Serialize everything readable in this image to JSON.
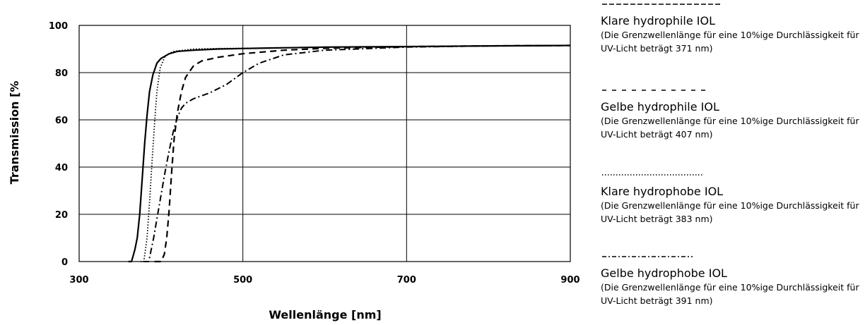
{
  "chart_data": {
    "type": "line",
    "title": "",
    "xlabel": "Wellenlänge [nm]",
    "ylabel": "Transmission [%",
    "xlim": [
      300,
      900
    ],
    "ylim": [
      0,
      100
    ],
    "x_ticks": [
      "300",
      "500",
      "700",
      "900"
    ],
    "y_ticks": [
      "0",
      "20",
      "40",
      "60",
      "80",
      "100"
    ],
    "grid": true,
    "legend_position": "right",
    "series": [
      {
        "name": "Klare hydrophile IOL",
        "note": "(Die Grenzwellenlänge für eine 10%ige Durchlässigkeit für UV-Licht beträgt 371 nm)",
        "line_style": "solid",
        "points": [
          [
            360,
            0
          ],
          [
            364,
            0
          ],
          [
            368,
            5
          ],
          [
            371,
            10
          ],
          [
            374,
            20
          ],
          [
            377,
            35
          ],
          [
            380,
            50
          ],
          [
            383,
            62
          ],
          [
            386,
            72
          ],
          [
            390,
            79
          ],
          [
            395,
            84
          ],
          [
            400,
            86
          ],
          [
            410,
            88
          ],
          [
            420,
            89
          ],
          [
            440,
            89.5
          ],
          [
            470,
            90
          ],
          [
            500,
            90.2
          ],
          [
            550,
            90.5
          ],
          [
            600,
            90.8
          ],
          [
            700,
            91
          ],
          [
            800,
            91.3
          ],
          [
            900,
            91.5
          ]
        ]
      },
      {
        "name": "Gelbe hydrophile IOL",
        "note": "(Die Grenzwellenlänge für eine 10%ige Durchlässigkeit für UV-Licht beträgt 407 nm)",
        "line_style": "dashed",
        "points": [
          [
            392,
            0
          ],
          [
            400,
            0
          ],
          [
            404,
            3
          ],
          [
            407,
            10
          ],
          [
            410,
            22
          ],
          [
            413,
            38
          ],
          [
            416,
            52
          ],
          [
            420,
            63
          ],
          [
            425,
            72
          ],
          [
            430,
            78
          ],
          [
            440,
            83
          ],
          [
            450,
            85
          ],
          [
            470,
            86.5
          ],
          [
            500,
            88
          ],
          [
            550,
            89.5
          ],
          [
            600,
            90.3
          ],
          [
            700,
            91
          ],
          [
            800,
            91.3
          ],
          [
            900,
            91.5
          ]
        ]
      },
      {
        "name": "Klare hydrophobe IOL",
        "note": "(Die Grenzwellenlänge für eine 10%ige Durchlässigkeit für UV-Licht beträgt 383 nm)",
        "line_style": "dotted",
        "points": [
          [
            375,
            0
          ],
          [
            379,
            0
          ],
          [
            383,
            10
          ],
          [
            386,
            25
          ],
          [
            389,
            42
          ],
          [
            392,
            58
          ],
          [
            395,
            72
          ],
          [
            399,
            82
          ],
          [
            405,
            87
          ],
          [
            415,
            89
          ],
          [
            440,
            90
          ],
          [
            470,
            90.2
          ],
          [
            500,
            90.3
          ],
          [
            600,
            90.8
          ],
          [
            700,
            91
          ],
          [
            800,
            91.3
          ],
          [
            900,
            91.5
          ]
        ]
      },
      {
        "name": "Gelbe hydrophobe IOL",
        "note": "(Die Grenzwellenlänge für eine 10%ige Durchlässigkeit für UV-Licht beträgt 391 nm)",
        "line_style": "dash-dot",
        "points": [
          [
            378,
            0
          ],
          [
            385,
            0
          ],
          [
            391,
            10
          ],
          [
            395,
            18
          ],
          [
            400,
            28
          ],
          [
            405,
            38
          ],
          [
            410,
            47
          ],
          [
            415,
            55
          ],
          [
            420,
            61
          ],
          [
            425,
            65
          ],
          [
            430,
            67
          ],
          [
            440,
            69
          ],
          [
            460,
            71.5
          ],
          [
            480,
            75
          ],
          [
            500,
            80
          ],
          [
            520,
            84
          ],
          [
            550,
            87.5
          ],
          [
            600,
            89.5
          ],
          [
            700,
            90.8
          ],
          [
            800,
            91.3
          ],
          [
            900,
            91.5
          ]
        ]
      }
    ]
  }
}
